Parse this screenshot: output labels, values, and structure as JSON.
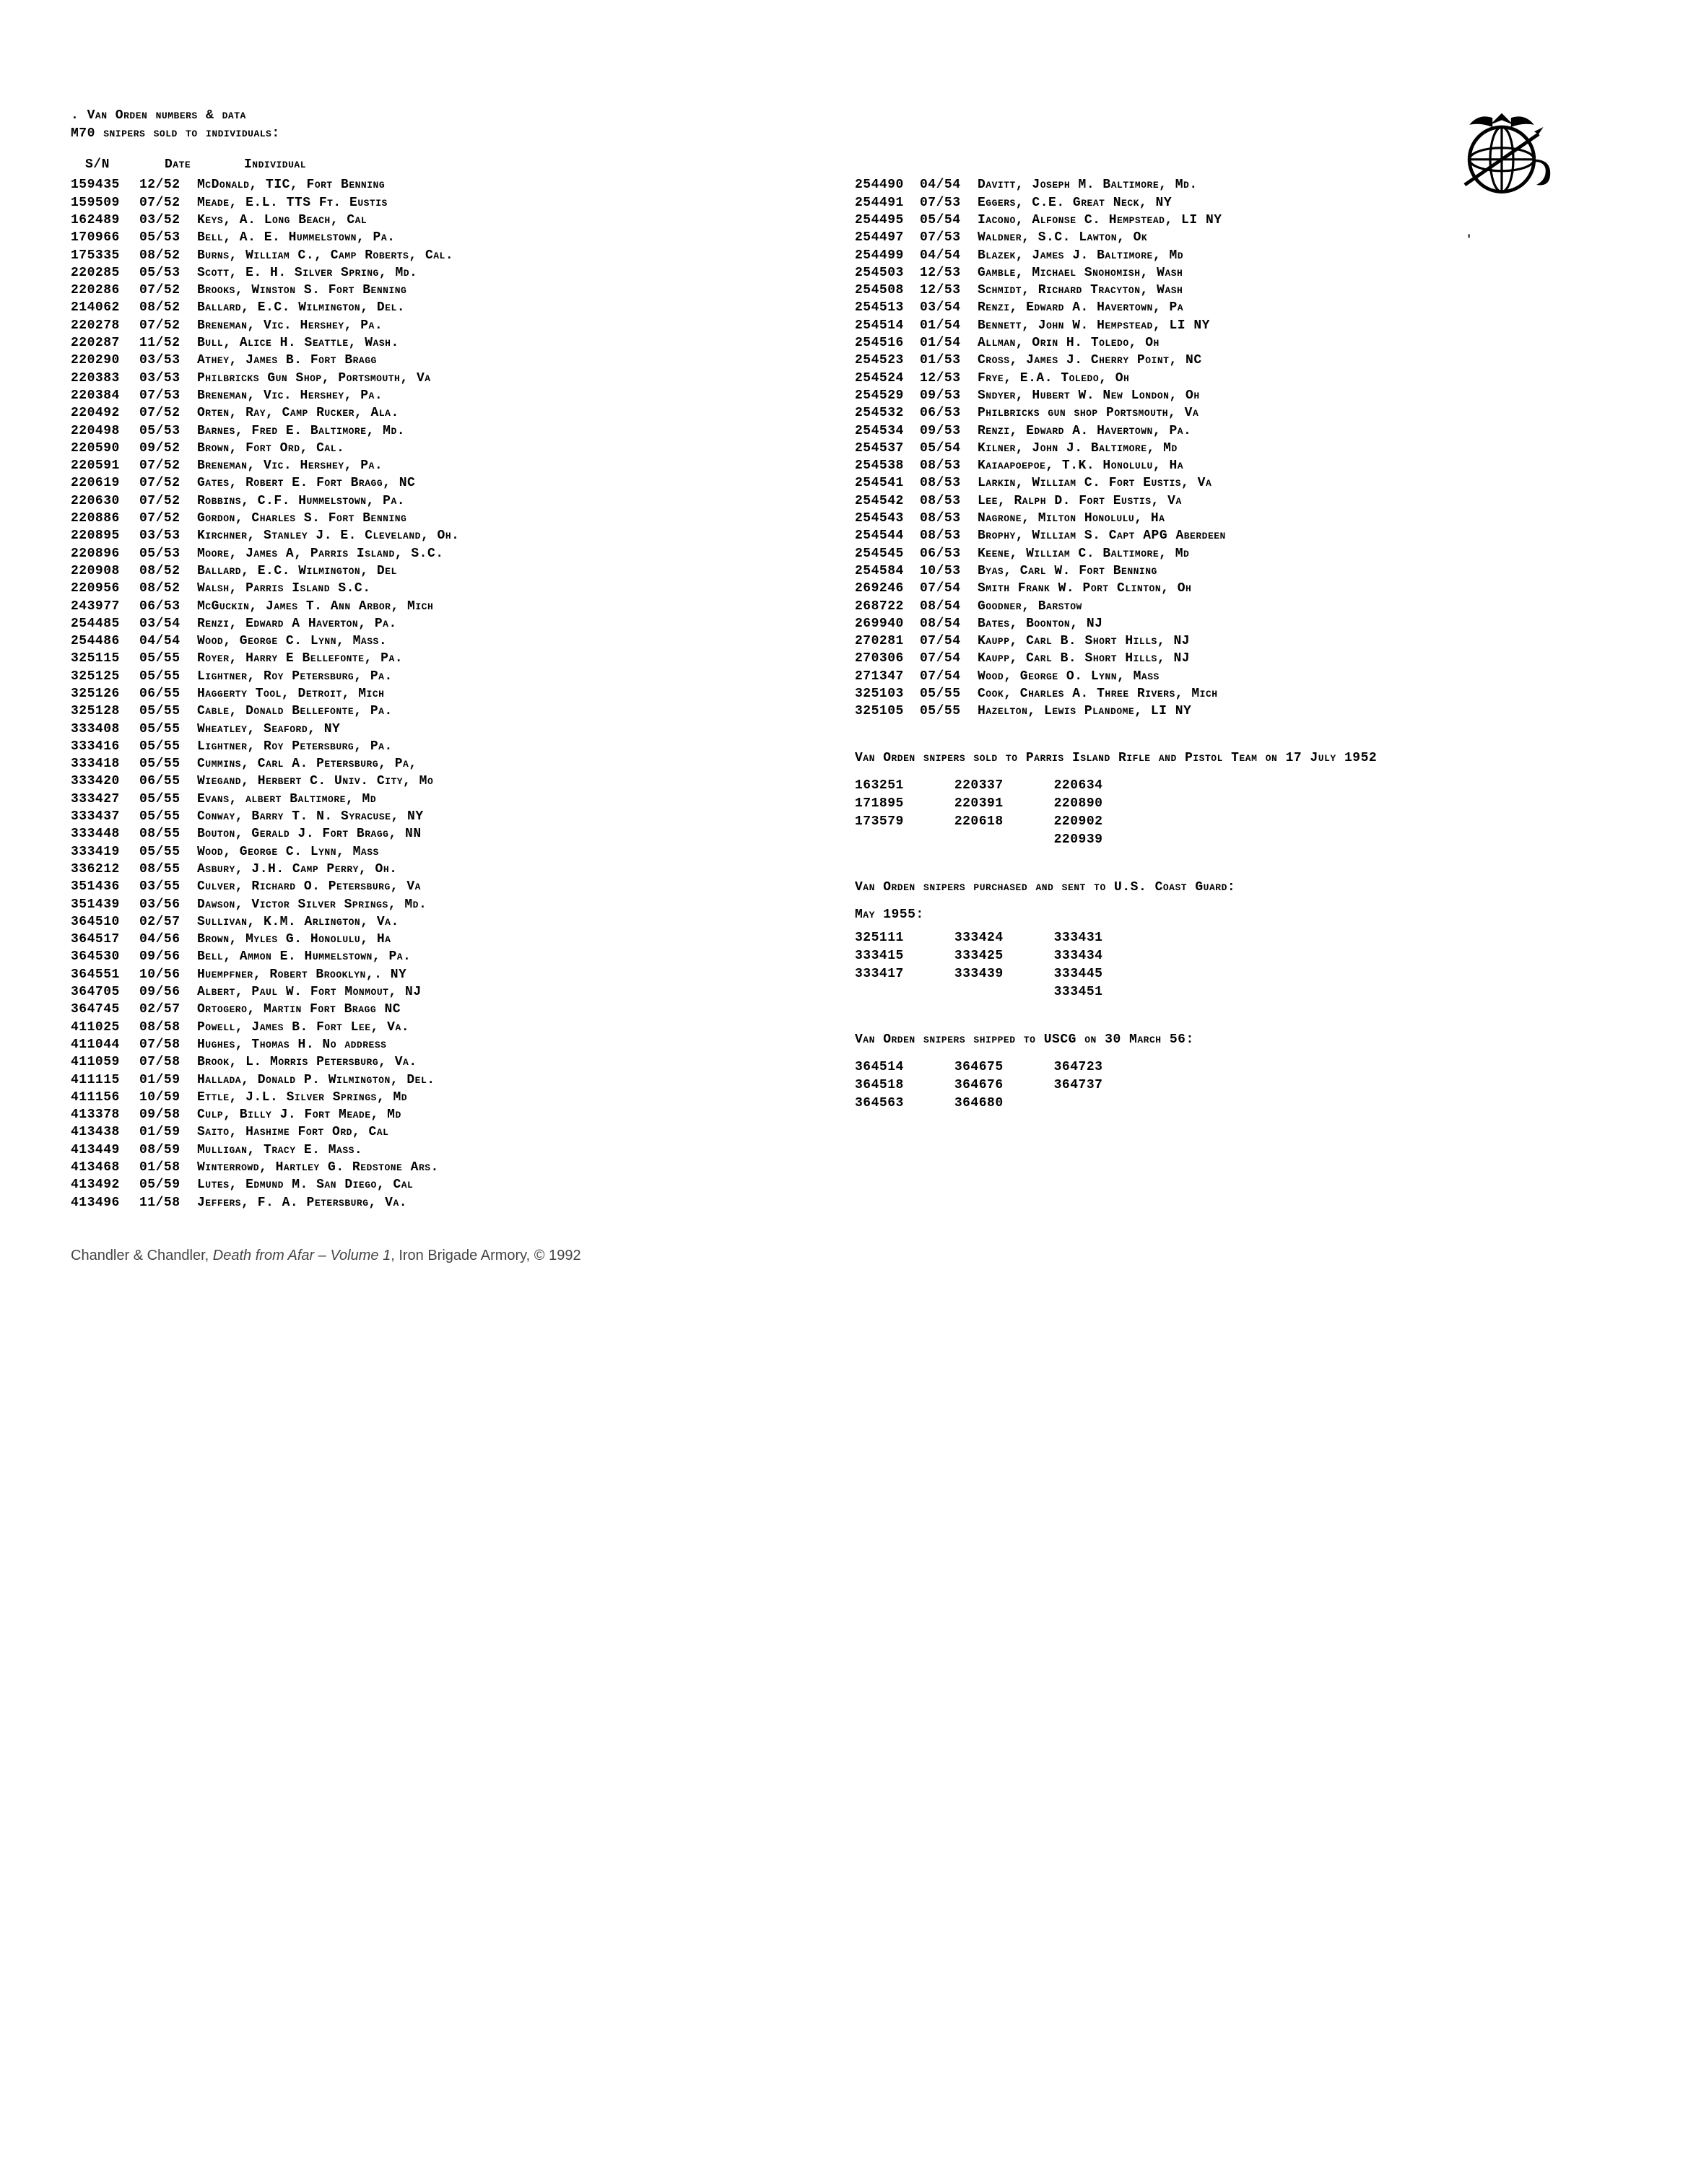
{
  "header": {
    "line1": ". Van Orden numbers & data",
    "line2": "M70 snipers sold to individuals:"
  },
  "col_headers": {
    "sn": "S/N",
    "date": "Date",
    "individual": "Individual"
  },
  "left_rows": [
    {
      "sn": "159435",
      "date": "12/52",
      "ind": "McDonald, TIC, Fort Benning"
    },
    {
      "sn": "159509",
      "date": "07/52",
      "ind": "Meade, E.L. TTS Ft. Eustis"
    },
    {
      "sn": "162489",
      "date": "03/52",
      "ind": "Keys, A.  Long Beach, Cal"
    },
    {
      "sn": "170966",
      "date": "05/53",
      "ind": "Bell, A. E.  Hummelstown, Pa."
    },
    {
      "sn": "175335",
      "date": "08/52",
      "ind": "Burns, William C., Camp Roberts, Cal."
    },
    {
      "sn": "220285",
      "date": "05/53",
      "ind": "Scott, E. H. Silver Spring, Md."
    },
    {
      "sn": "220286",
      "date": "07/52",
      "ind": "Brooks, Winston S.  Fort Benning"
    },
    {
      "sn": "214062",
      "date": "08/52",
      "ind": "Ballard, E.C. Wilmington, Del."
    },
    {
      "sn": "220278",
      "date": "07/52",
      "ind": "Breneman, Vic.  Hershey, Pa."
    },
    {
      "sn": "220287",
      "date": "11/52",
      "ind": "Bull, Alice H.  Seattle, Wash."
    },
    {
      "sn": "220290",
      "date": "03/53",
      "ind": "Athey, James B.  Fort Bragg"
    },
    {
      "sn": "220383",
      "date": "03/53",
      "ind": "Philbricks Gun Shop, Portsmouth, Va"
    },
    {
      "sn": "220384",
      "date": "07/53",
      "ind": "Breneman, Vic.  Hershey, Pa."
    },
    {
      "sn": "220492",
      "date": "07/52",
      "ind": "Orten, Ray,  Camp Rucker, Ala."
    },
    {
      "sn": "220498",
      "date": "05/53",
      "ind": "Barnes, Fred E.  Baltimore, Md."
    },
    {
      "sn": "220590",
      "date": "09/52",
      "ind": "Brown, Fort Ord, Cal."
    },
    {
      "sn": "220591",
      "date": "07/52",
      "ind": "Breneman, Vic.  Hershey, Pa."
    },
    {
      "sn": "220619",
      "date": "07/52",
      "ind": "Gates, Robert E.  Fort Bragg, NC"
    },
    {
      "sn": "220630",
      "date": "07/52",
      "ind": "Robbins, C.F.  Hummelstown, Pa."
    },
    {
      "sn": "220886",
      "date": "07/52",
      "ind": "Gordon, Charles S. Fort Benning"
    },
    {
      "sn": "220895",
      "date": "03/53",
      "ind": "Kirchner, Stanley J. E. Cleveland, Oh."
    },
    {
      "sn": "220896",
      "date": "05/53",
      "ind": "Moore, James A,  Parris Island, S.C."
    },
    {
      "sn": "220908",
      "date": "08/52",
      "ind": "Ballard, E.C.  Wilmington, Del"
    },
    {
      "sn": "220956",
      "date": "08/52",
      "ind": "Walsh, Parris Island  S.C."
    },
    {
      "sn": "243977",
      "date": "06/53",
      "ind": "McGuckin, James T.  Ann Arbor, Mich"
    },
    {
      "sn": "254485",
      "date": "03/54",
      "ind": "Renzi, Edward A  Haverton, Pa."
    },
    {
      "sn": "254486",
      "date": "04/54",
      "ind": "Wood, George C. Lynn, Mass."
    },
    {
      "sn": "325115",
      "date": "05/55",
      "ind": "Royer, Harry E  Bellefonte, Pa."
    },
    {
      "sn": "325125",
      "date": "05/55",
      "ind": "Lightner, Roy  Petersburg, Pa."
    },
    {
      "sn": "325126",
      "date": "06/55",
      "ind": "Haggerty Tool, Detroit, Mich"
    },
    {
      "sn": "325128",
      "date": "05/55",
      "ind": "Cable, Donald Bellefonte, Pa."
    },
    {
      "sn": "333408",
      "date": "05/55",
      "ind": "Wheatley, Seaford, NY"
    },
    {
      "sn": "333416",
      "date": "05/55",
      "ind": "Lightner, Roy  Petersburg, Pa."
    },
    {
      "sn": "333418",
      "date": "05/55",
      "ind": "Cummins, Carl A.  Petersburg, Pa,"
    },
    {
      "sn": "333420",
      "date": "06/55",
      "ind": "Wiegand,  Herbert C.  Univ. City, Mo"
    },
    {
      "sn": "333427",
      "date": "05/55",
      "ind": "Evans, albert   Baltimore, Md"
    },
    {
      "sn": "333437",
      "date": "05/55",
      "ind": "Conway, Barry T.  N. Syracuse, NY"
    },
    {
      "sn": "333448",
      "date": "08/55",
      "ind": "Bouton, Gerald J.  Fort Bragg, NN"
    },
    {
      "sn": "333419",
      "date": "05/55",
      "ind": "Wood, George C.  Lynn, Mass"
    },
    {
      "sn": "336212",
      "date": "08/55",
      "ind": "Asbury, J.H.  Camp Perry, Oh."
    },
    {
      "sn": "351436",
      "date": "03/55",
      "ind": "Culver, Richard O.  Petersburg, Va"
    },
    {
      "sn": "351439",
      "date": "03/56",
      "ind": "Dawson, Victor  Silver Springs, Md."
    },
    {
      "sn": "364510",
      "date": "02/57",
      "ind": "Sullivan, K.M.  Arlington, Va."
    },
    {
      "sn": "364517",
      "date": "04/56",
      "ind": "Brown, Myles G.  Honolulu, Ha"
    },
    {
      "sn": "364530",
      "date": "09/56",
      "ind": "Bell, Ammon E.  Hummelstown, Pa."
    },
    {
      "sn": "364551",
      "date": "10/56",
      "ind": "Huempfner, Robert  Brooklyn,. NY"
    },
    {
      "sn": "364705",
      "date": "09/56",
      "ind": "Albert, Paul W.  Fort Monmout, NJ"
    },
    {
      "sn": "364745",
      "date": "02/57",
      "ind": "Ortogero, Martin Fort Bragg NC"
    },
    {
      "sn": "411025",
      "date": "08/58",
      "ind": "Powell, James B.  Fort Lee, Va."
    },
    {
      "sn": "411044",
      "date": "07/58",
      "ind": "Hughes, Thomas H.  No address"
    },
    {
      "sn": "411059",
      "date": "07/58",
      "ind": "Brook, L. Morris Petersburg, Va."
    },
    {
      "sn": "411115",
      "date": "01/59",
      "ind": "Hallada, Donald P.  Wilmington, Del."
    },
    {
      "sn": "411156",
      "date": "10/59",
      "ind": "Ettle, J.L. Silver Springs, Md"
    },
    {
      "sn": "413378",
      "date": "09/58",
      "ind": "Culp, Billy J.  Fort Meade, Md"
    },
    {
      "sn": "413438",
      "date": "01/59",
      "ind": "Saito, Hashime  Fort Ord, Cal"
    },
    {
      "sn": "413449",
      "date": "08/59",
      "ind": "Mulligan, Tracy E.  Mass."
    },
    {
      "sn": "413468",
      "date": "01/58",
      "ind": "Winterrowd, Hartley G.  Redstone Ars."
    },
    {
      "sn": "413492",
      "date": "05/59",
      "ind": "Lutes, Edmund M.  San Diego, Cal"
    },
    {
      "sn": "413496",
      "date": "11/58",
      "ind": "Jeffers, F. A.  Petersburg, Va."
    }
  ],
  "right_rows": [
    {
      "sn": "254490",
      "date": "04/54",
      "ind": "Davitt, Joseph M.  Baltimore, Md."
    },
    {
      "sn": "254491",
      "date": "07/53",
      "ind": "Eggers, C.E.  Great Neck, NY"
    },
    {
      "sn": "254495",
      "date": "05/54",
      "ind": "Iacono, Alfonse C.  Hempstead, LI  NY"
    },
    {
      "sn": "254497",
      "date": "07/53",
      "ind": "Waldner, S.C.  Lawton, Ok"
    },
    {
      "sn": "254499",
      "date": "04/54",
      "ind": "Blazek, James J.  Baltimore, Md"
    },
    {
      "sn": "254503",
      "date": "12/53",
      "ind": "Gamble, Michael  Snohomish, Wash"
    },
    {
      "sn": "254508",
      "date": "12/53",
      "ind": "Schmidt, Richard  Tracyton, Wash"
    },
    {
      "sn": "254513",
      "date": "03/54",
      "ind": "Renzi, Edward A.  Havertown, Pa"
    },
    {
      "sn": "254514",
      "date": "01/54",
      "ind": "Bennett, John W.  Hempstead, LI  NY"
    },
    {
      "sn": "254516",
      "date": "01/54",
      "ind": "Allman, Orin H.  Toledo, Oh"
    },
    {
      "sn": "254523",
      "date": "01/53",
      "ind": "Cross, James J.  Cherry Point, NC"
    },
    {
      "sn": "254524",
      "date": "12/53",
      "ind": "Frye, E.A.  Toledo, Oh"
    },
    {
      "sn": "254529",
      "date": "09/53",
      "ind": "Sndyer, Hubert W.  New London, Oh"
    },
    {
      "sn": "254532",
      "date": "06/53",
      "ind": "Philbricks gun shop Portsmouth, Va"
    },
    {
      "sn": "254534",
      "date": "09/53",
      "ind": "Renzi, Edward A.  Havertown, Pa."
    },
    {
      "sn": "254537",
      "date": "05/54",
      "ind": "Kilner, John J.  Baltimore, Md"
    },
    {
      "sn": "254538",
      "date": "08/53",
      "ind": "Kaiaapoepoe, T.K.  Honolulu, Ha"
    },
    {
      "sn": "254541",
      "date": "08/53",
      "ind": "Larkin, William C.  Fort Eustis, Va"
    },
    {
      "sn": "254542",
      "date": "08/53",
      "ind": "Lee, Ralph D.  Fort Eustis, Va"
    },
    {
      "sn": "254543",
      "date": "08/53",
      "ind": "Nagrone, Milton  Honolulu, Ha"
    },
    {
      "sn": "254544",
      "date": "08/53",
      "ind": "Brophy, William S. Capt  APG Aberdeen"
    },
    {
      "sn": "254545",
      "date": "06/53",
      "ind": "Keene, William C. Baltimore, Md"
    },
    {
      "sn": "254584",
      "date": "10/53",
      "ind": "Byas, Carl W.  Fort Benning"
    },
    {
      "sn": "269246",
      "date": "07/54",
      "ind": "Smith Frank W.  Port Clinton, Oh"
    },
    {
      "sn": "268722",
      "date": "08/54",
      "ind": "Goodner, Barstow"
    },
    {
      "sn": "269940",
      "date": "08/54",
      "ind": "Bates,  Boonton, NJ"
    },
    {
      "sn": "270281",
      "date": "07/54",
      "ind": "Kaupp, Carl B.  Short Hills, NJ"
    },
    {
      "sn": "270306",
      "date": "07/54",
      "ind": "Kaupp, Carl B.  Short Hills, NJ"
    },
    {
      "sn": "271347",
      "date": "07/54",
      "ind": "Wood, George O.  Lynn, Mass"
    },
    {
      "sn": "325103",
      "date": "05/55",
      "ind": "Cook, Charles A.  Three Rivers, Mich"
    },
    {
      "sn": "325105",
      "date": "05/55",
      "ind": "Hazelton, Lewis  Plandome, LI  NY"
    }
  ],
  "parris": {
    "title": "Van  Orden  snipers sold to Parris Island Rifle and  Pistol Team on 17 July 1952",
    "cols": [
      [
        "163251",
        "171895",
        "173579"
      ],
      [
        "220337",
        "220391",
        "220618"
      ],
      [
        "220634",
        "220890",
        "220902",
        "220939"
      ]
    ]
  },
  "coast_guard": {
    "title": "Van  Orden  snipers    purchased and sent  to  U.S.  Coast Guard:",
    "sub": "May 1955:",
    "cols": [
      [
        "325111",
        "333415",
        "333417"
      ],
      [
        "333424",
        "333425",
        "333439"
      ],
      [
        "333431",
        "333434",
        "333445",
        "333451"
      ]
    ]
  },
  "uscg56": {
    "title": "Van Orden snipers shipped to USCG on 30 March 56:",
    "cols": [
      [
        "364514",
        "364518",
        "364563"
      ],
      [
        "364675",
        "364676",
        "364680"
      ],
      [
        "364723",
        "364737"
      ]
    ]
  },
  "citation": {
    "authors": "Chandler & Chandler, ",
    "title": "Death from Afar – Volume 1",
    "rest": ", Iron Brigade Armory, © 1992"
  }
}
